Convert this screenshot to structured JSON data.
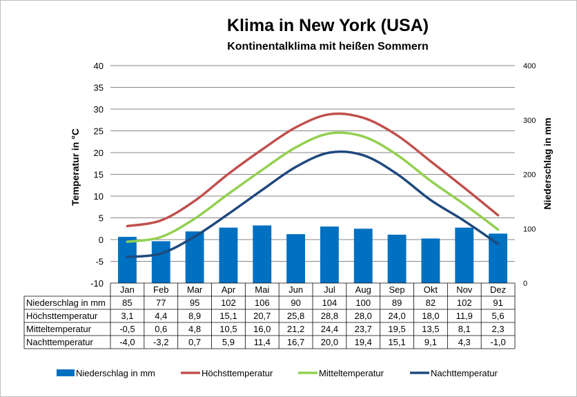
{
  "chart_data": {
    "type": "bar+line",
    "title": "Klima in New York (USA)",
    "subtitle": "Kontinentalklima mit heißen Sommern",
    "ylabel_left": "Temperatur in °C",
    "ylabel_right": "Niederschlag in mm",
    "ylim_left": [
      -10,
      40
    ],
    "yticks_left": [
      "40",
      "35",
      "30",
      "25",
      "20",
      "15",
      "10",
      "5",
      "0",
      "-5",
      "-10"
    ],
    "ylim_right": [
      0,
      400
    ],
    "yticks_right": [
      "400",
      "300",
      "200",
      "100",
      "0"
    ],
    "grid": true,
    "legend_position": "bottom",
    "categories": [
      "Jan",
      "Feb",
      "Mar",
      "Apr",
      "Mai",
      "Jun",
      "Jul",
      "Aug",
      "Sep",
      "Okt",
      "Nov",
      "Dez"
    ],
    "series": [
      {
        "name": "Niederschlag in mm",
        "kind": "bar",
        "axis": "right",
        "color": "#0070c0",
        "values": [
          85,
          77,
          95,
          102,
          106,
          90,
          104,
          100,
          89,
          82,
          102,
          91
        ],
        "labels": [
          "85",
          "77",
          "95",
          "102",
          "106",
          "90",
          "104",
          "100",
          "89",
          "82",
          "102",
          "91"
        ]
      },
      {
        "name": "Höchsttemperatur",
        "kind": "line",
        "axis": "left",
        "color": "#c0504d",
        "values": [
          3.1,
          4.4,
          8.9,
          15.1,
          20.7,
          25.8,
          28.8,
          28.0,
          24.0,
          18.0,
          11.9,
          5.6
        ],
        "labels": [
          "3,1",
          "4,4",
          "8,9",
          "15,1",
          "20,7",
          "25,8",
          "28,8",
          "28,0",
          "24,0",
          "18,0",
          "11,9",
          "5,6"
        ]
      },
      {
        "name": "Mitteltemperatur",
        "kind": "line",
        "axis": "left",
        "color": "#92d050",
        "values": [
          -0.5,
          0.6,
          4.8,
          10.5,
          16.0,
          21.2,
          24.4,
          23.7,
          19.5,
          13.5,
          8.1,
          2.3
        ],
        "labels": [
          "-0,5",
          "0,6",
          "4,8",
          "10,5",
          "16,0",
          "21,2",
          "24,4",
          "23,7",
          "19,5",
          "13,5",
          "8,1",
          "2,3"
        ]
      },
      {
        "name": "Nachttemperatur",
        "kind": "line",
        "axis": "left",
        "color": "#1f497d",
        "values": [
          -4.0,
          -3.2,
          0.7,
          5.9,
          11.4,
          16.7,
          20.0,
          19.4,
          15.1,
          9.1,
          4.3,
          -1.0
        ],
        "labels": [
          "-4,0",
          "-3,2",
          "0,7",
          "5,9",
          "11,4",
          "16,7",
          "20,0",
          "19,4",
          "15,1",
          "9,1",
          "4,3",
          "-1,0"
        ]
      }
    ]
  }
}
